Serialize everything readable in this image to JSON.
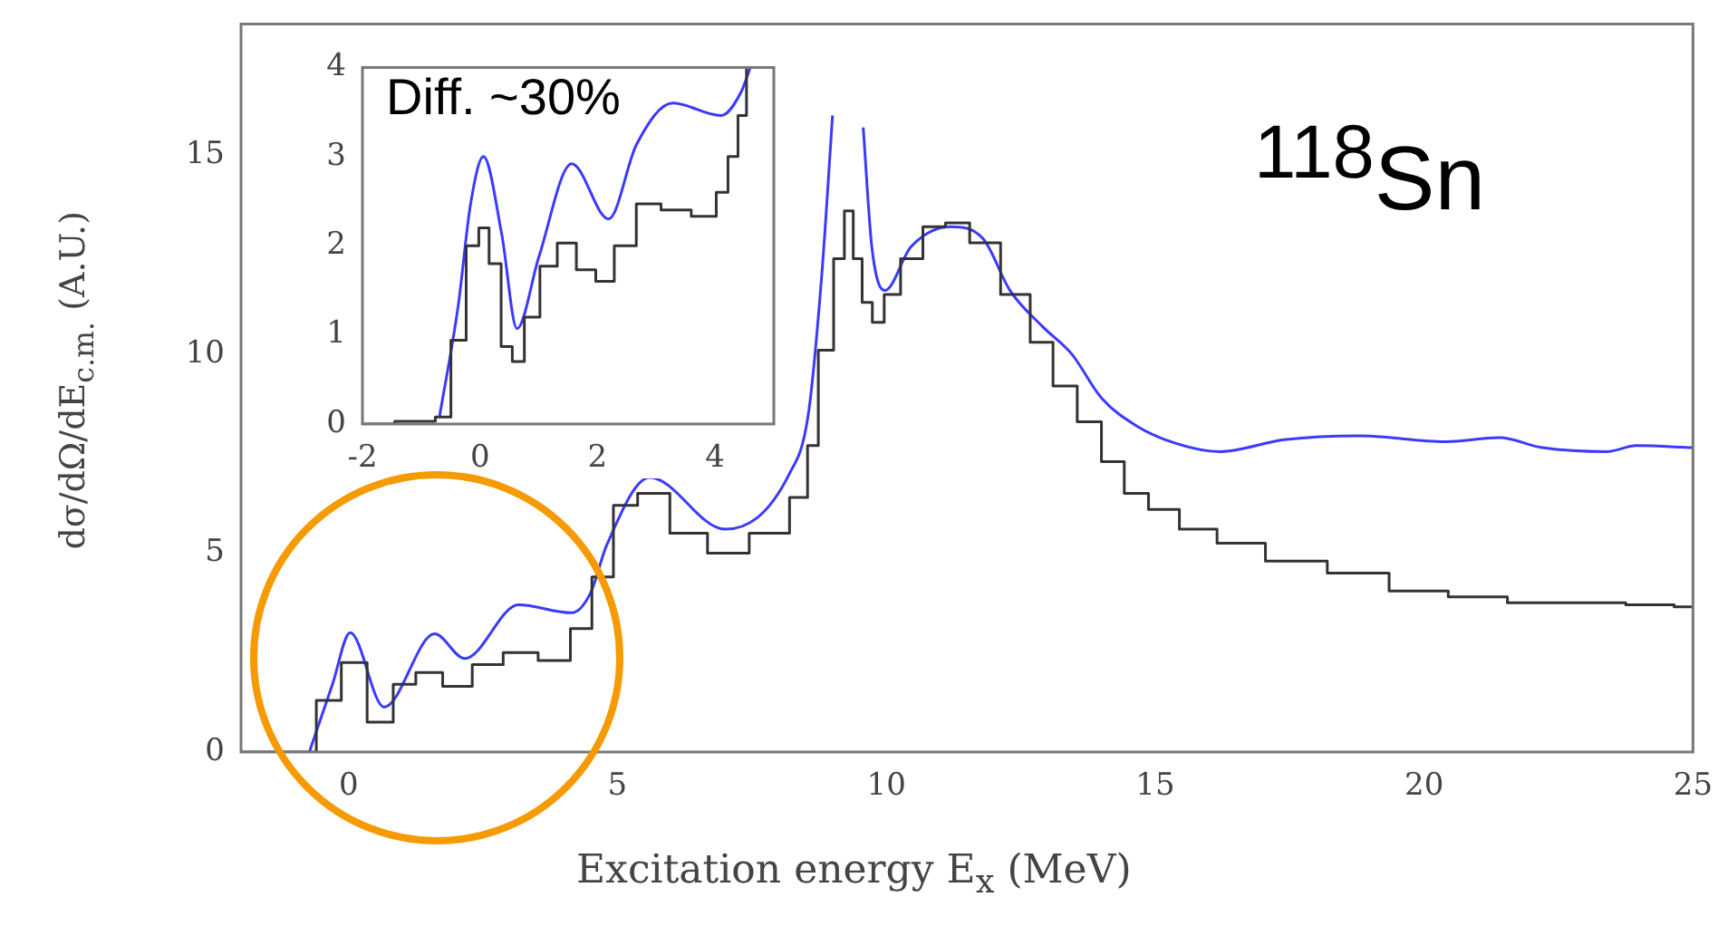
{
  "chart_data": [
    {
      "type": "line",
      "xlabel": "Excitation energy E$_{x}$ (MeV)",
      "ylabel": "dσ/dΩ/dE$_{c.m.}$ (A.U.)",
      "annotations": [
        "$^{118}$Sn"
      ],
      "xlim": [
        -2,
        25
      ],
      "ylim": [
        0,
        18.3
      ],
      "xticks": [
        0,
        5,
        10,
        15,
        20,
        25
      ],
      "yticks": [
        0,
        5,
        10,
        15
      ],
      "grid": false,
      "legend": false,
      "marker": "none",
      "series": [
        {
          "type": "step",
          "color": "#333333",
          "x": [
            -2,
            -0.9,
            -0.3,
            0.03,
            0.66,
            1.0,
            1.5,
            2.0,
            2.6,
            3.15,
            3.9,
            4.35,
            4.7,
            5.15,
            5.6,
            6.35,
            7.0,
            7.9,
            8.5,
            8.57,
            8.9,
            9.14,
            9.3,
            9.47,
            9.63,
            9.85,
            10.07,
            10.46,
            10.9,
            11.3,
            11.8,
            12.45,
            12.9,
            13.3,
            13.8,
            14.2,
            14.65,
            15.1,
            15.8,
            16.5,
            17.6,
            18.8,
            19.9,
            21.0,
            22.1,
            23.2,
            24.3,
            25
          ],
          "values": [
            0,
            0,
            1.3,
            2.25,
            0.75,
            1.7,
            2.0,
            1.65,
            2.2,
            2.5,
            2.3,
            3.1,
            4.4,
            6.2,
            6.5,
            5.5,
            5.0,
            5.5,
            6.4,
            7.7,
            10.1,
            12.4,
            13.6,
            12.4,
            11.3,
            10.8,
            11.5,
            12.4,
            13.2,
            13.3,
            12.8,
            11.5,
            10.3,
            9.2,
            8.3,
            7.3,
            6.5,
            6.1,
            5.6,
            5.25,
            4.8,
            4.5,
            4.05,
            3.9,
            3.75,
            3.75,
            3.7,
            3.65
          ]
        },
        {
          "color": "#3a3aff",
          "x": [
            -0.73,
            -0.3,
            0.03,
            0.66,
            1.6,
            2.16,
            3.16,
            4.15,
            4.5,
            4.8,
            5.6,
            7.0,
            8.2,
            8.55,
            8.8,
            9.0,
            9.07,
            9.45,
            9.57,
            9.73,
            9.97,
            10.46,
            11.2,
            11.8,
            12.3,
            12.9,
            13.45,
            14.0,
            14.65,
            15.4,
            16.2,
            17.4,
            18.8,
            20.4,
            21.4,
            22.2,
            23.4,
            23.95,
            25
          ],
          "values": [
            0,
            1.7,
            3.0,
            1.13,
            2.97,
            2.35,
            3.7,
            3.5,
            4.0,
            5.2,
            6.9,
            5.6,
            7.0,
            8.5,
            12,
            16,
            null,
            null,
            15.7,
            12.7,
            11.6,
            12.7,
            13.2,
            12.9,
            11.6,
            10.7,
            10.0,
            8.9,
            8.2,
            7.75,
            7.55,
            7.85,
            7.95,
            7.8,
            7.9,
            7.65,
            7.55,
            7.7,
            7.65
          ]
        }
      ]
    },
    {
      "type": "line",
      "annotations": [
        "Diff. ~30%"
      ],
      "xlim": [
        -2,
        5
      ],
      "ylim": [
        0,
        4
      ],
      "xticks": [
        -2,
        0,
        2,
        4
      ],
      "yticks": [
        0,
        1,
        2,
        3,
        4
      ],
      "grid": false,
      "legend": false,
      "marker": "none",
      "series": [
        {
          "type": "step",
          "color": "#333333",
          "x": [
            -2,
            -0.9,
            -0.62,
            -0.37,
            -0.1,
            0.06,
            0.25,
            0.47,
            0.63,
            0.88,
            1.16,
            1.47,
            1.81,
            2.13,
            2.44,
            2.88,
            3.28,
            3.91,
            4.13,
            4.31,
            4.47,
            4.6
          ],
          "values": [
            0,
            0.03,
            0.08,
            0.94,
            2.0,
            2.2,
            1.8,
            0.87,
            0.7,
            1.2,
            1.77,
            2.03,
            1.73,
            1.6,
            2.0,
            2.47,
            2.4,
            2.33,
            2.6,
            3.0,
            3.46,
            4.0
          ]
        },
        {
          "color": "#3a3aff",
          "x": [
            -0.69,
            -0.37,
            -0.16,
            0.06,
            0.37,
            0.63,
            1.0,
            1.56,
            2.19,
            2.66,
            3.28,
            4.1,
            4.44,
            4.6
          ],
          "values": [
            0.08,
            1.33,
            2.47,
            3.0,
            2.13,
            1.07,
            1.87,
            2.92,
            2.3,
            3.13,
            3.6,
            3.46,
            3.72,
            4.0
          ]
        }
      ]
    }
  ]
}
